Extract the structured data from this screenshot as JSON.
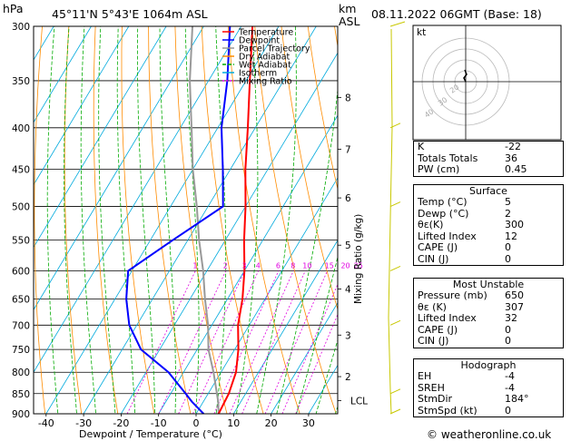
{
  "header": {
    "location": "45°11'N  5°43'E  1064m  ASL",
    "datetime": "08.11.2022  06GMT  (Base: 18)",
    "hpa_label": "hPa",
    "km_label_1": "km",
    "km_label_2": "ASL"
  },
  "chart_data": {
    "type": "skew-t log-p",
    "xlabel": "Dewpoint / Temperature (°C)",
    "ylabel_right": "Mixing Ratio (g/kg)",
    "x_ticks": [
      -40,
      -30,
      -20,
      -10,
      0,
      10,
      20,
      30
    ],
    "pressure_ticks": [
      300,
      350,
      400,
      450,
      500,
      550,
      600,
      650,
      700,
      750,
      800,
      850,
      900
    ],
    "km_ticks": [
      {
        "label": "8",
        "p": 367
      },
      {
        "label": "7",
        "p": 425
      },
      {
        "label": "6",
        "p": 488
      },
      {
        "label": "5",
        "p": 558
      },
      {
        "label": "4",
        "p": 632
      },
      {
        "label": "3",
        "p": 720
      },
      {
        "label": "2",
        "p": 810
      },
      {
        "label": "LCL",
        "p": 867
      }
    ],
    "mixing_ratio_labels": [
      "1",
      "2",
      "3",
      "4",
      "6",
      "8",
      "10",
      "15",
      "20",
      "25"
    ],
    "legend": [
      "Temperature",
      "Dewpoint",
      "Parcel Trajectory",
      "Dry Adiabat",
      "Wet Adiabat",
      "Isotherm",
      "Mixing Ratio"
    ],
    "colors": {
      "temperature": "#ff0000",
      "dewpoint": "#0000ff",
      "parcel": "#999999",
      "dry_adiabat": "#ff8c00",
      "wet_adiabat": "#00aa00",
      "isotherm": "#00aadd",
      "mixing_ratio": "#e000e0"
    },
    "temperature": [
      [
        900,
        6
      ],
      [
        850,
        5.5
      ],
      [
        800,
        4
      ],
      [
        750,
        1
      ],
      [
        700,
        -3
      ],
      [
        650,
        -6
      ],
      [
        600,
        -10
      ],
      [
        550,
        -15
      ],
      [
        500,
        -20
      ],
      [
        450,
        -26
      ],
      [
        400,
        -32
      ],
      [
        350,
        -39
      ],
      [
        300,
        -47
      ]
    ],
    "dewpoint": [
      [
        900,
        2
      ],
      [
        870,
        -3
      ],
      [
        850,
        -6
      ],
      [
        800,
        -14
      ],
      [
        750,
        -25
      ],
      [
        700,
        -32
      ],
      [
        650,
        -37
      ],
      [
        600,
        -41
      ],
      [
        550,
        -34
      ],
      [
        500,
        -26
      ],
      [
        450,
        -32
      ],
      [
        400,
        -39
      ],
      [
        350,
        -45
      ],
      [
        300,
        -53
      ]
    ],
    "parcel": [
      [
        900,
        6
      ],
      [
        870,
        4
      ],
      [
        800,
        -2
      ],
      [
        750,
        -7
      ],
      [
        700,
        -11
      ],
      [
        650,
        -16
      ],
      [
        600,
        -21
      ],
      [
        550,
        -27
      ],
      [
        500,
        -33
      ],
      [
        450,
        -40
      ],
      [
        400,
        -47
      ],
      [
        350,
        -55
      ],
      [
        300,
        -63
      ]
    ]
  },
  "hodograph": {
    "label": "kt",
    "ring_labels": [
      "40",
      "30",
      "20"
    ]
  },
  "indices": {
    "top": [
      {
        "k": "K",
        "v": "-22"
      },
      {
        "k": "Totals Totals",
        "v": "36"
      },
      {
        "k": "PW (cm)",
        "v": "0.45"
      }
    ],
    "surface_title": "Surface",
    "surface": [
      {
        "k": "Temp (°C)",
        "v": "5"
      },
      {
        "k": "Dewp (°C)",
        "v": "2"
      },
      {
        "k": "θε(K)",
        "v": "300"
      },
      {
        "k": "Lifted Index",
        "v": "12"
      },
      {
        "k": "CAPE (J)",
        "v": "0"
      },
      {
        "k": "CIN (J)",
        "v": "0"
      }
    ],
    "unstable_title": "Most Unstable",
    "unstable": [
      {
        "k": "Pressure (mb)",
        "v": "650"
      },
      {
        "k": "θε (K)",
        "v": "307"
      },
      {
        "k": "Lifted Index",
        "v": "32"
      },
      {
        "k": "CAPE (J)",
        "v": "0"
      },
      {
        "k": "CIN (J)",
        "v": "0"
      }
    ],
    "hodo_title": "Hodograph",
    "hodo": [
      {
        "k": "EH",
        "v": "-4"
      },
      {
        "k": "SREH",
        "v": "-4"
      },
      {
        "k": "StmDir",
        "v": "184°"
      },
      {
        "k": "StmSpd (kt)",
        "v": "0"
      }
    ]
  },
  "footer": "© weatheronline.co.uk"
}
